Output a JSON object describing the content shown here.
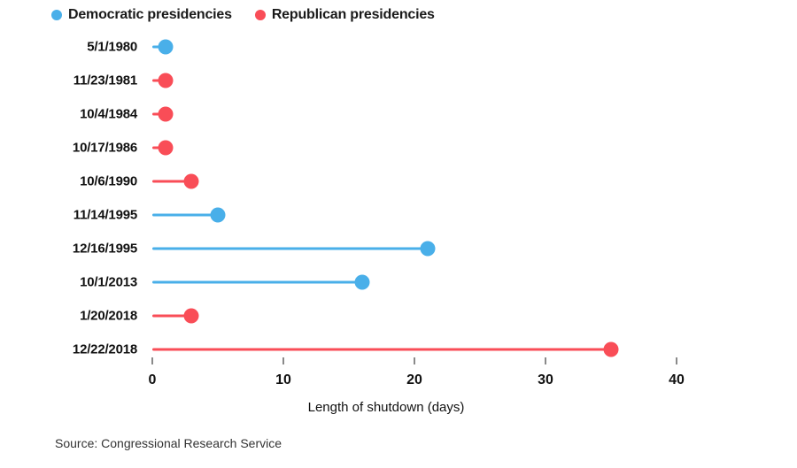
{
  "legend": {
    "items": [
      {
        "label": "Democratic presidencies",
        "party": "Democratic",
        "color": "#49afe9"
      },
      {
        "label": "Republican presidencies",
        "party": "Republican",
        "color": "#f94d57"
      }
    ],
    "position": "top-left"
  },
  "chart_data": {
    "type": "bar",
    "subtype": "lollipop",
    "orientation": "horizontal",
    "categories": [
      "5/1/1980",
      "11/23/1981",
      "10/4/1984",
      "10/17/1986",
      "10/6/1990",
      "11/14/1995",
      "12/16/1995",
      "10/1/2013",
      "1/20/2018",
      "12/22/2018"
    ],
    "points": [
      {
        "date": "5/1/1980",
        "days": 1,
        "party": "Democratic"
      },
      {
        "date": "11/23/1981",
        "days": 1,
        "party": "Republican"
      },
      {
        "date": "10/4/1984",
        "days": 1,
        "party": "Republican"
      },
      {
        "date": "10/17/1986",
        "days": 1,
        "party": "Republican"
      },
      {
        "date": "10/6/1990",
        "days": 3,
        "party": "Republican"
      },
      {
        "date": "11/14/1995",
        "days": 5,
        "party": "Democratic"
      },
      {
        "date": "12/16/1995",
        "days": 21,
        "party": "Democratic"
      },
      {
        "date": "10/1/2013",
        "days": 16,
        "party": "Democratic"
      },
      {
        "date": "1/20/2018",
        "days": 3,
        "party": "Republican"
      },
      {
        "date": "12/22/2018",
        "days": 35,
        "party": "Republican"
      }
    ],
    "xlabel": "Length of shutdown (days)",
    "xlim": [
      0,
      40
    ],
    "xticks": [
      0,
      10,
      20,
      30,
      40
    ],
    "grid": false,
    "colors": {
      "Democratic": "#49afe9",
      "Republican": "#f94d57"
    }
  },
  "source": "Source: Congressional Research Service"
}
